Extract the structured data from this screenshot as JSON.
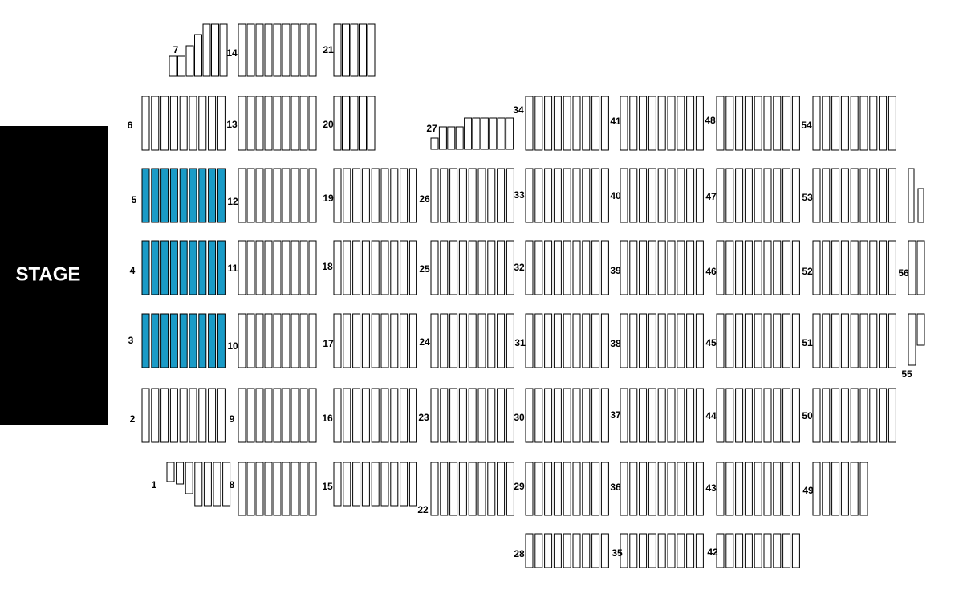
{
  "stage": "STAGE",
  "sections": [
    {
      "label": "1"
    },
    {
      "label": "2"
    },
    {
      "label": "3",
      "selected": true
    },
    {
      "label": "4",
      "selected": true
    },
    {
      "label": "5",
      "selected": true
    },
    {
      "label": "6"
    },
    {
      "label": "7"
    },
    {
      "label": "8"
    },
    {
      "label": "9"
    },
    {
      "label": "10"
    },
    {
      "label": "11"
    },
    {
      "label": "12"
    },
    {
      "label": "13"
    },
    {
      "label": "14"
    },
    {
      "label": "15"
    },
    {
      "label": "16"
    },
    {
      "label": "17"
    },
    {
      "label": "18"
    },
    {
      "label": "19"
    },
    {
      "label": "20"
    },
    {
      "label": "21"
    },
    {
      "label": "22"
    },
    {
      "label": "23"
    },
    {
      "label": "24"
    },
    {
      "label": "25"
    },
    {
      "label": "26"
    },
    {
      "label": "27"
    },
    {
      "label": "28"
    },
    {
      "label": "29"
    },
    {
      "label": "30"
    },
    {
      "label": "31"
    },
    {
      "label": "32"
    },
    {
      "label": "33"
    },
    {
      "label": "34"
    },
    {
      "label": "35"
    },
    {
      "label": "36"
    },
    {
      "label": "37"
    },
    {
      "label": "38"
    },
    {
      "label": "39"
    },
    {
      "label": "40"
    },
    {
      "label": "41"
    },
    {
      "label": "42"
    },
    {
      "label": "43"
    },
    {
      "label": "44"
    },
    {
      "label": "45"
    },
    {
      "label": "46"
    },
    {
      "label": "47"
    },
    {
      "label": "48"
    },
    {
      "label": "49"
    },
    {
      "label": "50"
    },
    {
      "label": "51"
    },
    {
      "label": "52"
    },
    {
      "label": "53"
    },
    {
      "label": "54"
    },
    {
      "label": "55"
    },
    {
      "label": "56"
    }
  ]
}
